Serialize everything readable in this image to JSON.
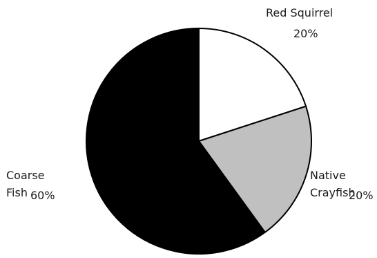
{
  "chart_data": {
    "type": "pie",
    "title": "",
    "slices": [
      {
        "label_line1": "Red Squirrel",
        "label_line2": "",
        "pct_label": "20%",
        "value": 20,
        "color": "#ffffff"
      },
      {
        "label_line1": "Native",
        "label_line2": "Crayfish",
        "pct_label": "20%",
        "value": 20,
        "color": "#c0c0c0"
      },
      {
        "label_line1": "Coarse",
        "label_line2": "Fish",
        "pct_label": "60%",
        "value": 60,
        "color": "#000000"
      }
    ],
    "stroke_color": "#000000"
  }
}
